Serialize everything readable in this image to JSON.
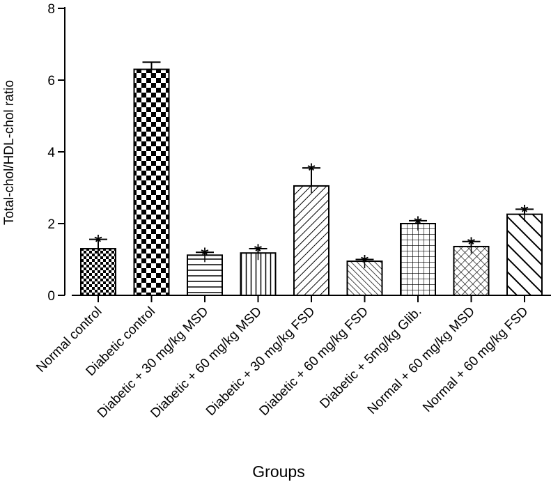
{
  "chart_data": {
    "type": "bar",
    "title": "",
    "xlabel": "Groups",
    "ylabel": "Total-chol/HDL-chol ratio",
    "ylim": [
      0,
      8
    ],
    "yticks": [
      0,
      2,
      4,
      6,
      8
    ],
    "grid": false,
    "categories": [
      "Normal control",
      "Diabetic control",
      "Diabetic + 30 mg/kg MSD",
      "Diabetic + 60 mg/kg MSD",
      "Diabetic + 30 mg/kg FSD",
      "Diabetic + 60 mg/kg FSD",
      "Diabetic + 5mg/kg Glib.",
      "Normal + 60 mg/kg MSD",
      "Normal + 60 mg/kg FSD"
    ],
    "values": [
      1.3,
      6.3,
      1.12,
      1.18,
      3.05,
      0.95,
      2.0,
      1.36,
      2.26
    ],
    "errors": [
      0.26,
      0.2,
      0.08,
      0.12,
      0.5,
      0.05,
      0.08,
      0.14,
      0.14
    ],
    "significance": [
      "*",
      "",
      "*",
      "*",
      "*",
      "*",
      "*",
      "*",
      "*"
    ],
    "patterns": [
      "small-checker",
      "large-checker",
      "horizontal-lines",
      "vertical-lines",
      "diagonal-up",
      "diagonal-down",
      "grid",
      "diagonal-cross",
      "wide-diagonal-down"
    ],
    "colors": {
      "bar_fill": "#ffffff",
      "ink": "#000000"
    }
  }
}
